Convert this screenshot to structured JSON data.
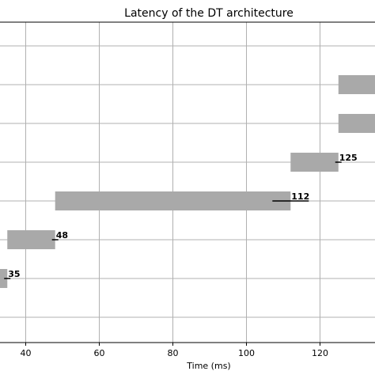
{
  "chart_data": {
    "type": "bar",
    "orientation": "horizontal",
    "title": "Latency of the DT architecture",
    "xlabel": "Time (ms)",
    "ylabel": "",
    "xlim": [
      33,
      135
    ],
    "grid": true,
    "x_ticks": [
      40,
      60,
      80,
      100,
      120
    ],
    "bar_color": "#a9a9a9",
    "rows": [
      {
        "start": 30,
        "end": 35,
        "label": "35",
        "marker": 35
      },
      {
        "start": 35,
        "end": 48,
        "label": "48",
        "marker": 48
      },
      {
        "start": 48,
        "end": 112,
        "label": "112",
        "marker": 112
      },
      {
        "start": 112,
        "end": 125,
        "label": "125",
        "marker": 125
      },
      {
        "start": 125,
        "end": 140,
        "label": "",
        "marker": null
      },
      {
        "start": 125,
        "end": 140,
        "label": "",
        "marker": null
      }
    ]
  }
}
